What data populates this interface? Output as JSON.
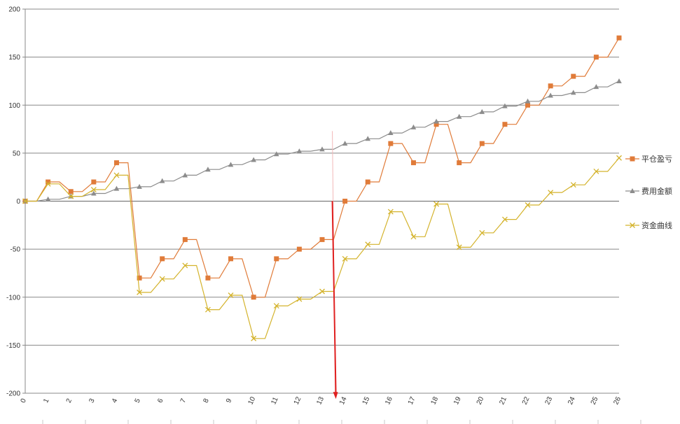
{
  "chart_data": {
    "type": "line",
    "title": "",
    "xlabel": "",
    "ylabel": "",
    "x": [
      0,
      1,
      2,
      3,
      4,
      5,
      6,
      7,
      8,
      9,
      10,
      11,
      12,
      13,
      14,
      15,
      16,
      17,
      18,
      19,
      20,
      21,
      22,
      23,
      24,
      25,
      26
    ],
    "x_tick_labels": [
      "0",
      "1",
      "2",
      "3",
      "4",
      "5",
      "6",
      "7",
      "8",
      "9",
      "10",
      "11",
      "12",
      "13",
      "14",
      "15",
      "16",
      "17",
      "18",
      "19",
      "20",
      "21",
      "22",
      "23",
      "24",
      "25",
      "26"
    ],
    "ylim": [
      -200,
      200
    ],
    "y_ticks": [
      -200,
      -150,
      -100,
      -50,
      0,
      50,
      100,
      150,
      200
    ],
    "y_tick_labels": [
      "-200",
      "-150",
      "-100",
      "-50",
      "0",
      "50",
      "100",
      "150",
      "200"
    ],
    "grid": true,
    "legend_position": "right",
    "step": true,
    "series": [
      {
        "name": "平仓盈亏",
        "color": "#E07B39",
        "marker": "square",
        "values": [
          0,
          20,
          10,
          20,
          40,
          -80,
          -60,
          -40,
          -80,
          -60,
          -100,
          -60,
          -50,
          -40,
          0,
          20,
          60,
          40,
          80,
          40,
          60,
          80,
          100,
          120,
          130,
          150,
          170
        ]
      },
      {
        "name": "费用金额",
        "color": "#8C8C8C",
        "marker": "triangle",
        "values": [
          0,
          2,
          5,
          8,
          13,
          15,
          21,
          27,
          33,
          38,
          43,
          49,
          52,
          54,
          60,
          65,
          71,
          77,
          83,
          88,
          93,
          99,
          104,
          110,
          113,
          119,
          125
        ]
      },
      {
        "name": "资金曲线",
        "color": "#D4B32C",
        "marker": "x",
        "values": [
          0,
          18,
          5,
          12,
          27,
          -95,
          -81,
          -67,
          -113,
          -98,
          -143,
          -109,
          -102,
          -94,
          -60,
          -45,
          -11,
          -37,
          -3,
          -48,
          -33,
          -19,
          -4,
          9,
          17,
          31,
          45
        ]
      }
    ],
    "annotation": {
      "type": "arrow",
      "color": "#E02020",
      "x": 13.6,
      "from_y": 73,
      "to_y": -206
    }
  }
}
